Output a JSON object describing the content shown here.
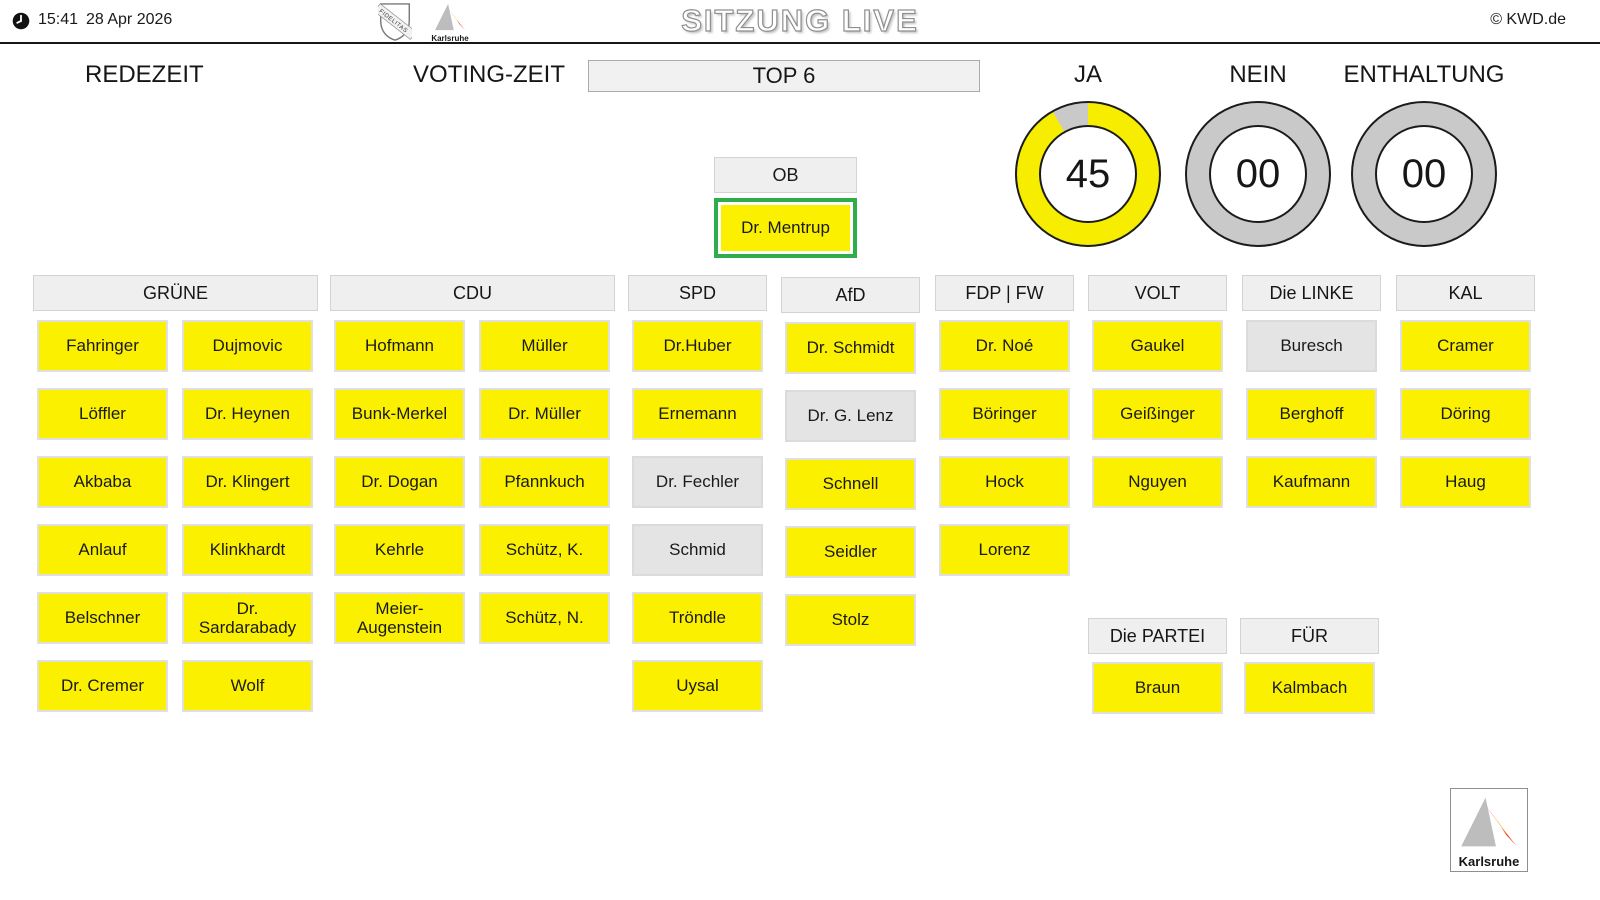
{
  "topbar": {
    "time": "15:41",
    "date": "28 Apr 2026",
    "title": "SITZUNG LIVE",
    "copyright": "© KWD.de",
    "crest_text": "FIDELITAS",
    "city_logo_text": "Karlsruhe"
  },
  "labels": {
    "redezeit": "REDEZEIT",
    "voting_zeit": "VOTING-ZEIT",
    "top": "TOP 6"
  },
  "vote_counters": [
    {
      "label": "JA",
      "value": "45",
      "filled": 45,
      "total": 49
    },
    {
      "label": "NEIN",
      "value": "00",
      "filled": 0,
      "total": 49
    },
    {
      "label": "ENTHALTUNG",
      "value": "00",
      "filled": 0,
      "total": 49
    }
  ],
  "chair": {
    "role": "OB",
    "name": "Dr. Mentrup",
    "vote": "ja",
    "highlighted": true
  },
  "parties": [
    {
      "key": "gruene",
      "name": "GRÜNE",
      "cols": 2,
      "members": [
        {
          "name": "Fahringer",
          "vote": "ja"
        },
        {
          "name": "Dujmovic",
          "vote": "ja"
        },
        {
          "name": "Löffler",
          "vote": "ja"
        },
        {
          "name": "Dr. Heynen",
          "vote": "ja"
        },
        {
          "name": "Akbaba",
          "vote": "ja"
        },
        {
          "name": "Dr. Klingert",
          "vote": "ja"
        },
        {
          "name": "Anlauf",
          "vote": "ja"
        },
        {
          "name": "Klinkhardt",
          "vote": "ja"
        },
        {
          "name": "Belschner",
          "vote": "ja"
        },
        {
          "name": "Dr. Sardarabady",
          "vote": "ja"
        },
        {
          "name": "Dr. Cremer",
          "vote": "ja"
        },
        {
          "name": "Wolf",
          "vote": "ja"
        }
      ]
    },
    {
      "key": "cdu",
      "name": "CDU",
      "cols": 2,
      "members": [
        {
          "name": "Hofmann",
          "vote": "ja"
        },
        {
          "name": "Müller",
          "vote": "ja"
        },
        {
          "name": "Bunk-Merkel",
          "vote": "ja"
        },
        {
          "name": "Dr. Müller",
          "vote": "ja"
        },
        {
          "name": "Dr. Dogan",
          "vote": "ja"
        },
        {
          "name": "Pfannkuch",
          "vote": "ja"
        },
        {
          "name": "Kehrle",
          "vote": "ja"
        },
        {
          "name": "Schütz, K.",
          "vote": "ja"
        },
        {
          "name": "Meier-Augenstein",
          "vote": "ja"
        },
        {
          "name": "Schütz, N.",
          "vote": "ja"
        }
      ]
    },
    {
      "key": "spd",
      "name": "SPD",
      "cols": 1,
      "members": [
        {
          "name": "Dr.Huber",
          "vote": "ja"
        },
        {
          "name": "Ernemann",
          "vote": "ja"
        },
        {
          "name": "Dr. Fechler",
          "vote": "none"
        },
        {
          "name": "Schmid",
          "vote": "none"
        },
        {
          "name": "Tröndle",
          "vote": "ja"
        },
        {
          "name": "Uysal",
          "vote": "ja"
        }
      ]
    },
    {
      "key": "afd",
      "name": "AfD",
      "cols": 1,
      "members": [
        {
          "name": "Dr. Schmidt",
          "vote": "ja"
        },
        {
          "name": "Dr. G. Lenz",
          "vote": "none"
        },
        {
          "name": "Schnell",
          "vote": "ja"
        },
        {
          "name": "Seidler",
          "vote": "ja"
        },
        {
          "name": "Stolz",
          "vote": "ja"
        }
      ]
    },
    {
      "key": "fdp",
      "name": "FDP | FW",
      "cols": 1,
      "members": [
        {
          "name": "Dr. Noé",
          "vote": "ja"
        },
        {
          "name": "Böringer",
          "vote": "ja"
        },
        {
          "name": "Hock",
          "vote": "ja"
        },
        {
          "name": "Lorenz",
          "vote": "ja"
        }
      ]
    },
    {
      "key": "volt",
      "name": "VOLT",
      "cols": 1,
      "members": [
        {
          "name": "Gaukel",
          "vote": "ja"
        },
        {
          "name": "Geißinger",
          "vote": "ja"
        },
        {
          "name": "Nguyen",
          "vote": "ja"
        }
      ]
    },
    {
      "key": "linke",
      "name": "Die LINKE",
      "cols": 1,
      "members": [
        {
          "name": "Buresch",
          "vote": "none"
        },
        {
          "name": "Berghoff",
          "vote": "ja"
        },
        {
          "name": "Kaufmann",
          "vote": "ja"
        }
      ]
    },
    {
      "key": "kal",
      "name": "KAL",
      "cols": 1,
      "members": [
        {
          "name": "Cramer",
          "vote": "ja"
        },
        {
          "name": "Döring",
          "vote": "ja"
        },
        {
          "name": "Haug",
          "vote": "ja"
        }
      ]
    },
    {
      "key": "partei",
      "name": "Die PARTEI",
      "cols": 1,
      "members": [
        {
          "name": "Braun",
          "vote": "ja"
        }
      ]
    },
    {
      "key": "fuer",
      "name": "FÜR",
      "cols": 1,
      "members": [
        {
          "name": "Kalmbach",
          "vote": "ja"
        }
      ]
    }
  ],
  "footer": {
    "logo_text": "Karlsruhe"
  },
  "colors": {
    "vote_yes": "#FAF000",
    "vote_none": "#E4E4E4",
    "gauge_fill": "#F7ED00",
    "gauge_empty": "#C9C9C9",
    "highlight_green": "#2FAC4B"
  }
}
